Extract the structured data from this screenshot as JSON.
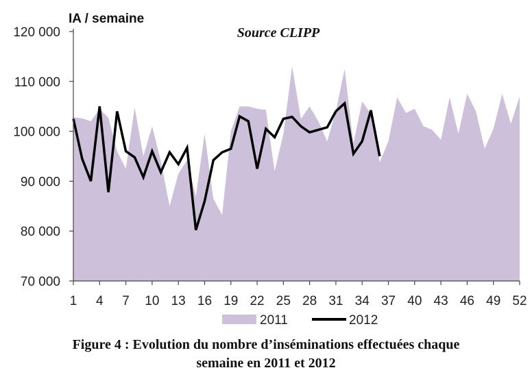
{
  "chart_data": {
    "type": "line",
    "ylabel": "IA / semaine",
    "annotation": "Source CLIPP",
    "ylim": [
      70000,
      120000
    ],
    "y_ticks": [
      70000,
      80000,
      90000,
      100000,
      110000,
      120000
    ],
    "y_tick_labels": [
      "70 000",
      "80 000",
      "90 000",
      "100 000",
      "110 000",
      "120 000"
    ],
    "xlim": [
      1,
      52
    ],
    "x_ticks": [
      1,
      4,
      7,
      10,
      13,
      16,
      19,
      22,
      25,
      28,
      31,
      34,
      37,
      40,
      43,
      46,
      49,
      52
    ],
    "x_tick_labels": [
      "1",
      "4",
      "7",
      "10",
      "13",
      "16",
      "19",
      "22",
      "25",
      "28",
      "31",
      "34",
      "37",
      "40",
      "43",
      "46",
      "49",
      "52"
    ],
    "legend_position": "bottom",
    "series": [
      {
        "name": "2011",
        "style": "area",
        "color": "#ccc0da",
        "x": [
          1,
          2,
          3,
          4,
          5,
          6,
          7,
          8,
          9,
          10,
          11,
          12,
          13,
          14,
          15,
          16,
          17,
          18,
          19,
          20,
          21,
          22,
          23,
          24,
          25,
          26,
          27,
          28,
          29,
          30,
          31,
          32,
          33,
          34,
          35,
          36,
          37,
          38,
          39,
          40,
          41,
          42,
          43,
          44,
          45,
          46,
          47,
          48,
          49,
          50,
          51,
          52
        ],
        "values": [
          102800,
          102600,
          102000,
          104500,
          102700,
          96000,
          92500,
          104800,
          95000,
          101000,
          94000,
          85000,
          91500,
          94200,
          87000,
          99500,
          86500,
          83200,
          100000,
          105000,
          105000,
          104500,
          104300,
          92000,
          99500,
          113000,
          102500,
          105000,
          102000,
          98000,
          104000,
          112500,
          97500,
          106000,
          103500,
          93800,
          98000,
          106800,
          103700,
          104500,
          101000,
          100300,
          98300,
          106800,
          99500,
          107500,
          104000,
          96500,
          100500,
          107500,
          101500,
          107000
        ]
      },
      {
        "name": "2012",
        "style": "line",
        "color": "#000000",
        "x": [
          1,
          2,
          3,
          4,
          5,
          6,
          7,
          8,
          9,
          10,
          11,
          12,
          13,
          14,
          15,
          16,
          17,
          18,
          19,
          20,
          21,
          22,
          23,
          24,
          25,
          26,
          27,
          28,
          29,
          30,
          31,
          32,
          33,
          34,
          35,
          36
        ],
        "values": [
          102500,
          94500,
          90000,
          105000,
          87800,
          104000,
          96000,
          94800,
          90800,
          96000,
          91800,
          95800,
          93400,
          96700,
          80200,
          86000,
          94200,
          95800,
          96500,
          103000,
          102000,
          92500,
          100500,
          98800,
          102500,
          102900,
          101000,
          99800,
          100300,
          100800,
          104000,
          105600,
          95500,
          98000,
          104200,
          95000
        ]
      }
    ]
  },
  "caption": {
    "line1": "Figure 4 : Evolution du nombre d’inséminations effectuées chaque",
    "line2": "semaine en 2011 et 2012"
  }
}
